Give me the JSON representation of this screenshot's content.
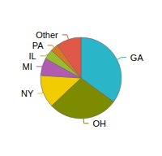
{
  "chart_data": {
    "type": "pie",
    "categories": [
      "GA",
      "OH",
      "NY",
      "MI",
      "IL",
      "PA",
      "Other"
    ],
    "values": [
      35,
      28,
      13,
      7,
      4,
      3,
      10
    ],
    "colors": [
      "#2ab5c8",
      "#7d8b00",
      "#f0cc00",
      "#b05ab0",
      "#98bb30",
      "#d87820",
      "#e05848"
    ]
  }
}
